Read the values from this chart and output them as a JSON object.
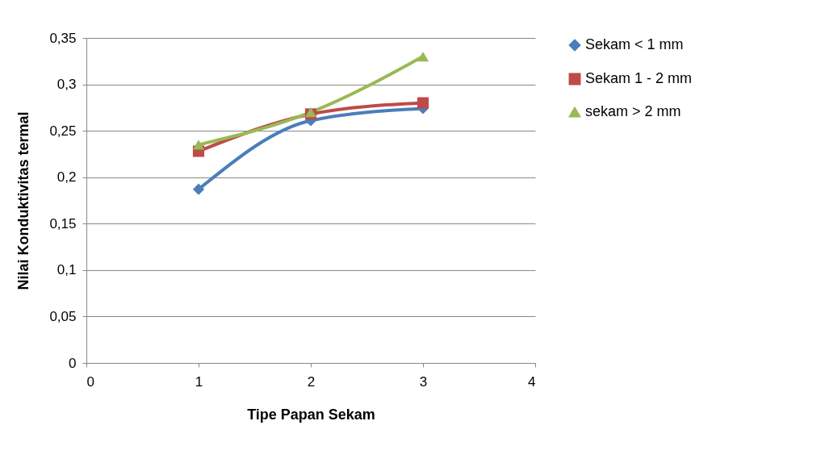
{
  "chart_data": {
    "type": "line",
    "xlabel": "Tipe Papan Sekam",
    "ylabel": "Nilai Konduktivitas termal",
    "x": [
      1,
      2,
      3
    ],
    "series": [
      {
        "name": "Sekam < 1 mm",
        "color": "#4a7ebb",
        "marker": "diamond",
        "values": [
          0.187,
          0.261,
          0.274
        ]
      },
      {
        "name": "Sekam 1 - 2 mm",
        "color": "#be4b48",
        "marker": "square",
        "values": [
          0.228,
          0.268,
          0.28
        ]
      },
      {
        "name": "sekam > 2 mm",
        "color": "#98b954",
        "marker": "triangle",
        "values": [
          0.235,
          0.27,
          0.33
        ]
      }
    ],
    "xlim": [
      0,
      4
    ],
    "xticks": [
      0,
      1,
      2,
      3,
      4
    ],
    "ylim": [
      0,
      0.35
    ],
    "yticks": [
      0,
      {
        "value": 0.05,
        "label": "0,05"
      },
      {
        "value": 0.1,
        "label": "0,1"
      },
      {
        "value": 0.15,
        "label": "0,15"
      },
      {
        "value": 0.2,
        "label": "0,2"
      },
      {
        "value": 0.25,
        "label": "0,25"
      },
      {
        "value": 0.3,
        "label": "0,3"
      },
      {
        "value": 0.35,
        "label": "0,35"
      }
    ],
    "grid": "y",
    "legend": "right",
    "line_style": "solid"
  }
}
